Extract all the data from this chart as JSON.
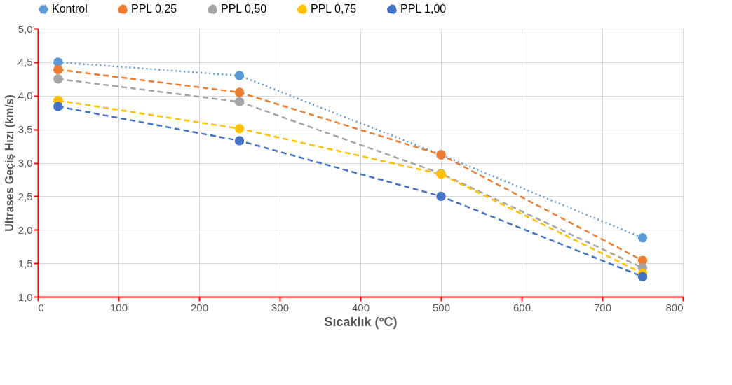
{
  "chart_data": {
    "type": "line",
    "xlabel": "Sıcaklık (°C)",
    "ylabel": "Ultrases Geçiş Hızı (km/s)",
    "x": [
      25,
      250,
      500,
      750
    ],
    "series": [
      {
        "name": "Kontrol",
        "color": "#5b9bd5",
        "line_style": "dotted",
        "values": [
          4.5,
          4.3,
          3.12,
          1.88
        ]
      },
      {
        "name": "PPL 0,25",
        "color": "#ed7d31",
        "line_style": "dashed",
        "values": [
          4.39,
          4.05,
          3.12,
          1.54
        ]
      },
      {
        "name": "PPL 0,50",
        "color": "#a5a5a5",
        "line_style": "dashed",
        "values": [
          4.25,
          3.91,
          2.84,
          1.43
        ]
      },
      {
        "name": "PPL 0,75",
        "color": "#ffc000",
        "line_style": "dashed",
        "values": [
          3.93,
          3.51,
          2.83,
          1.35
        ]
      },
      {
        "name": "PPL 1,00",
        "color": "#4472c4",
        "line_style": "dashed",
        "values": [
          3.84,
          3.33,
          2.5,
          1.3
        ]
      }
    ],
    "xlim": [
      0,
      800
    ],
    "xticks": [
      0,
      100,
      200,
      300,
      400,
      500,
      600,
      700,
      800
    ],
    "ylim": [
      1,
      5
    ],
    "yticks": [
      {
        "value": 1,
        "label": "1,0"
      },
      {
        "value": 1.5,
        "label": "1,5"
      },
      {
        "value": 2,
        "label": "2,0"
      },
      {
        "value": 2.5,
        "label": "2,5"
      },
      {
        "value": 3,
        "label": "3,0"
      },
      {
        "value": 3.5,
        "label": "3,5"
      },
      {
        "value": 4,
        "label": "4,0"
      },
      {
        "value": 4.5,
        "label": "4,5"
      },
      {
        "value": 5,
        "label": "5,0"
      }
    ],
    "grid": true,
    "legend": "top",
    "marker": "circle"
  }
}
